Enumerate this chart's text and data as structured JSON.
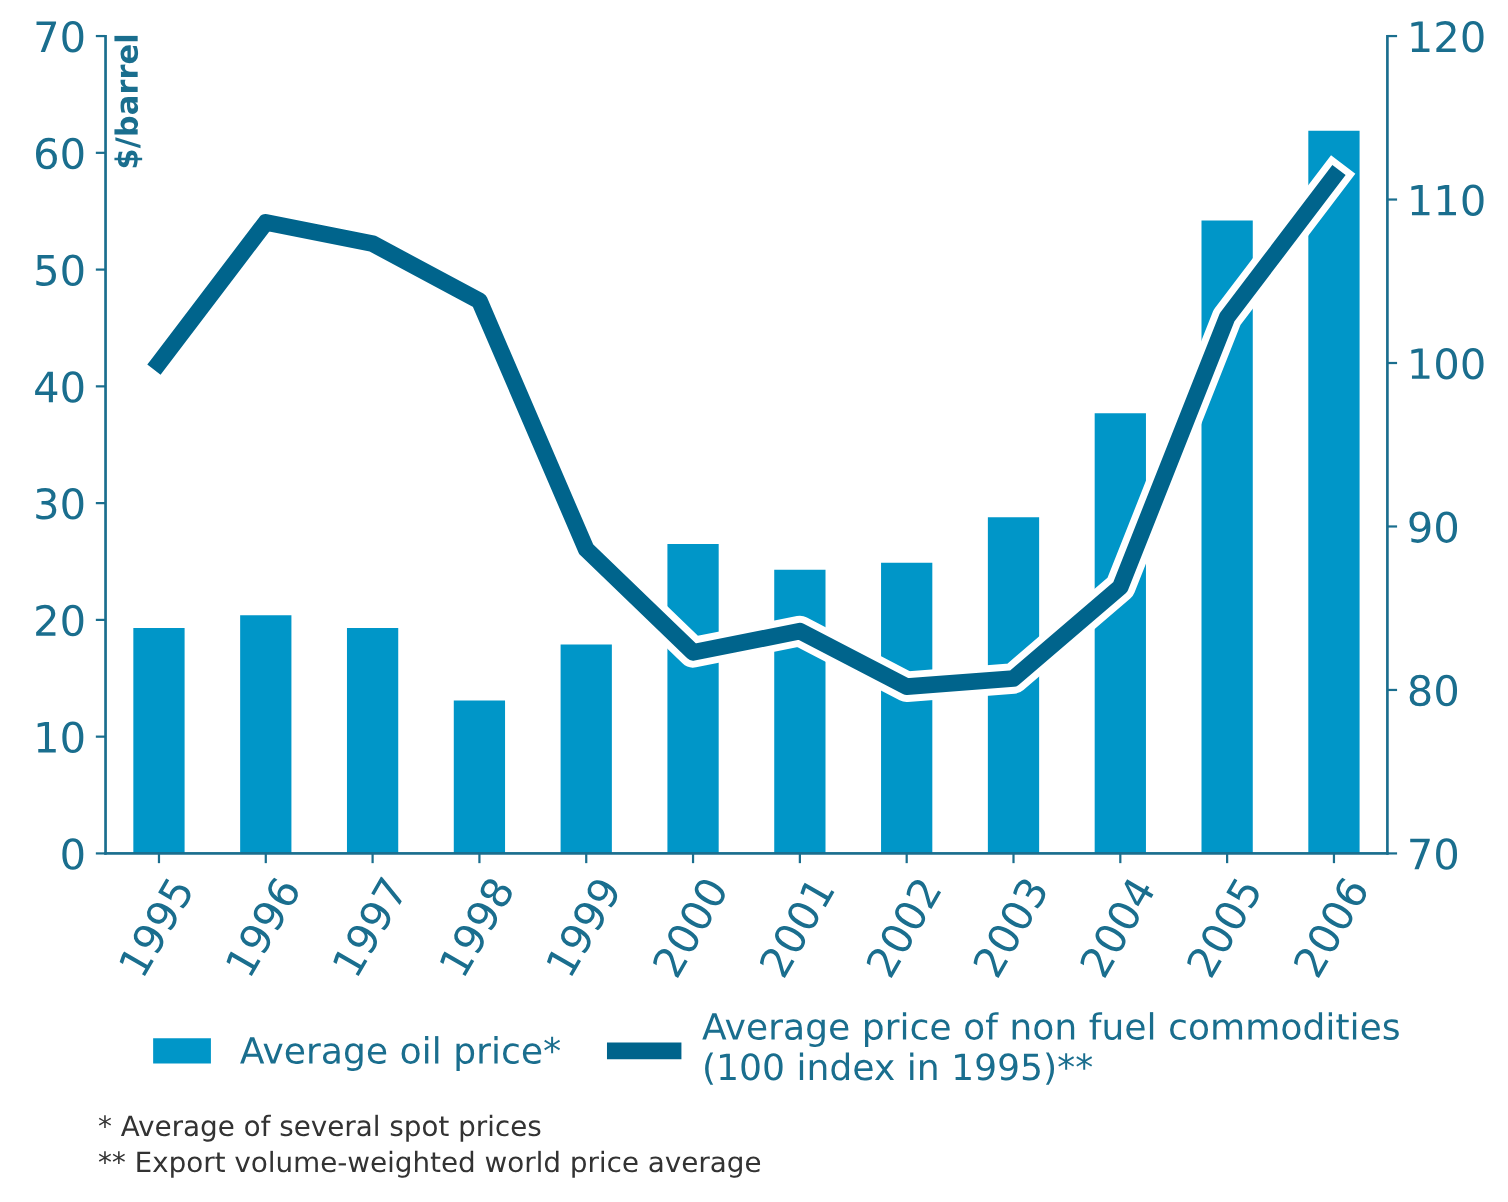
{
  "chart_data": {
    "type": "bar",
    "ylabel": "$/barrel",
    "categories": [
      "1995",
      "1996",
      "1997",
      "1998",
      "1999",
      "2000",
      "2001",
      "2002",
      "2003",
      "2004",
      "2005",
      "2006"
    ],
    "series": [
      {
        "name": "Average oil price*",
        "color": "#0096c8",
        "values": [
          19.3,
          20.4,
          19.3,
          13.1,
          17.9,
          26.5,
          24.3,
          24.9,
          28.8,
          37.7,
          54.2,
          61.9
        ]
      },
      {
        "name": "Average price of non fuel commodities\n(100 index in 1995)**",
        "type": "line",
        "axis": "y2",
        "color": "#00648c",
        "values": [
          100,
          108.6,
          107.3,
          103.8,
          88.6,
          82.3,
          83.6,
          80.2,
          80.7,
          86.3,
          102.8,
          111.4
        ]
      }
    ],
    "ylim": [
      0,
      70
    ],
    "yticks": [
      0,
      10,
      20,
      30,
      40,
      50,
      60,
      70
    ],
    "y2lim": [
      70,
      120
    ],
    "y2ticks": [
      70,
      80,
      90,
      100,
      110,
      120
    ],
    "grid": false,
    "legend": "bottom",
    "marker": "none",
    "line_style": "solid",
    "annotations": [
      "* Average of several spot prices",
      "** Export volume-weighted world price average"
    ]
  }
}
